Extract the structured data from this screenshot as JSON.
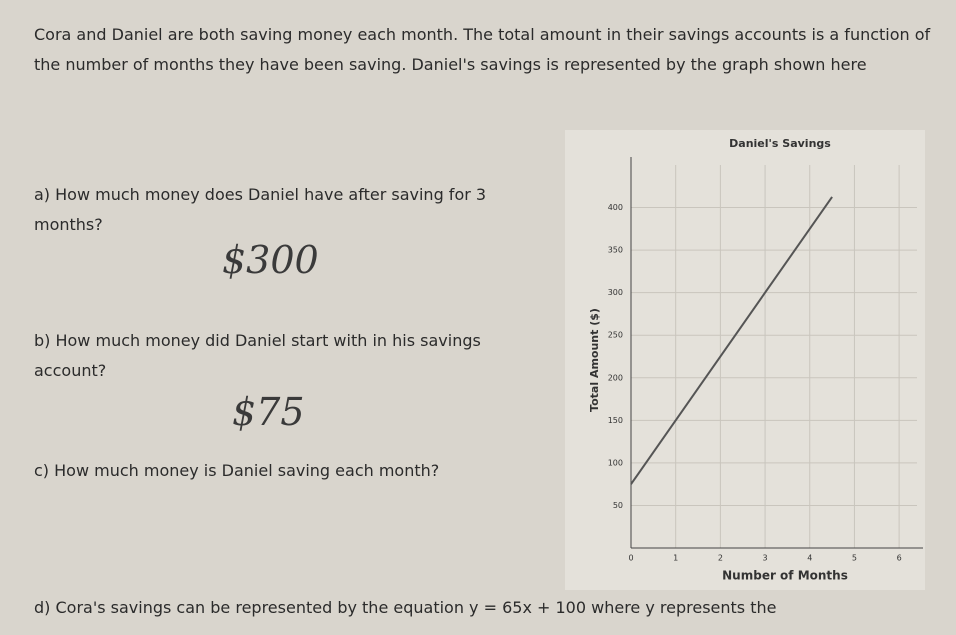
{
  "intro": "Cora and Daniel are both saving money each month. The total amount in their savings accounts is a function of the number of months they have been saving. Daniel's savings is represented by the graph shown here",
  "questions": [
    {
      "text": "a) How much money does Daniel have after saving for 3 months?",
      "answer": "$300"
    },
    {
      "text": "b) How much money did Daniel start with in his savings account?",
      "answer": "$75"
    },
    {
      "text": "c) How much money is Daniel saving each month?"
    },
    {
      "text": "d) Cora's savings can be represented by the equation y = 65x + 100 where y represents the"
    }
  ],
  "chart_data": {
    "type": "line",
    "title": "Daniel's Savings",
    "x_label": "Number of Months",
    "y_label": "Total Amount ($)",
    "x": [
      0,
      4.5
    ],
    "series": [
      {
        "name": "Daniel",
        "color": "#555555",
        "values": [
          75,
          412.5
        ]
      }
    ],
    "xlim": [
      0,
      6.4
    ],
    "xticks": [
      0,
      1,
      2,
      3,
      4,
      5,
      6
    ],
    "ylim": [
      0,
      450
    ],
    "yticks": [
      50,
      100,
      150,
      200,
      250,
      300,
      350,
      400
    ],
    "grid": true
  }
}
